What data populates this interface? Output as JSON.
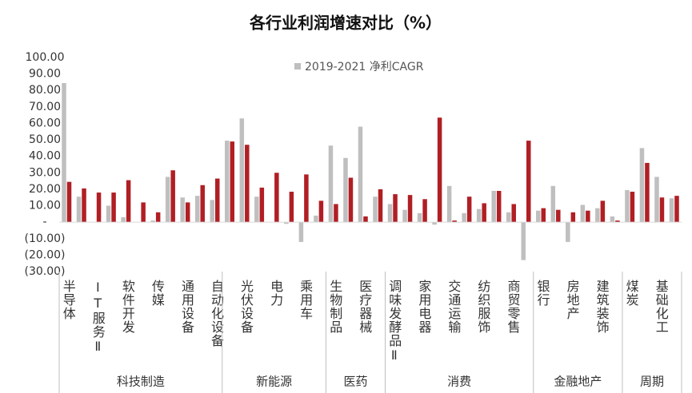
{
  "chart_data": {
    "type": "bar",
    "title": "各行业利润增速对比（%）",
    "categories": [
      "半导体",
      null,
      "IT服务Ⅱ",
      null,
      "软件开发",
      null,
      "传媒",
      null,
      "通用设备",
      null,
      "自动化设备",
      null,
      "光伏设备",
      null,
      "电力",
      null,
      "乘用车",
      null,
      "生物制品",
      null,
      "医疗器械",
      null,
      "调味发酵品Ⅱ",
      null,
      "家用电器",
      null,
      "交通运输",
      null,
      "纺织服饰",
      null,
      "商贸零售",
      null,
      "银行",
      null,
      "房地产",
      null,
      "建筑装饰",
      null,
      "煤炭",
      null,
      "基础化工",
      null
    ],
    "groups": [
      {
        "label": "科技制造",
        "span": 11
      },
      {
        "label": "新能源",
        "span": 7
      },
      {
        "label": "医药",
        "span": 4
      },
      {
        "label": "消费",
        "span": 10
      },
      {
        "label": "金融地产",
        "span": 6
      },
      {
        "label": "周期",
        "span": 4
      }
    ],
    "series": [
      {
        "name": "2019-2021 净利CAGR",
        "color": "#bfbfbf",
        "values": [
          84.5,
          15.5,
          0,
          10,
          3,
          0,
          1,
          27.5,
          15,
          16,
          13.5,
          49.5,
          63,
          15.5,
          0,
          -1,
          -12,
          4,
          46.5,
          39,
          58,
          15.5,
          11,
          7.5,
          5.5,
          -1.5,
          22,
          5.5,
          8,
          19,
          6,
          -23,
          7,
          22,
          -12,
          10.5,
          8.5,
          3.5,
          19.5,
          45,
          27.5,
          14.5
        ]
      },
      {
        "color": "#b01f24",
        "values": [
          24.5,
          20.5,
          18,
          18,
          25.5,
          12,
          6,
          31.5,
          12,
          22.5,
          26.5,
          49,
          47,
          21,
          30,
          18.5,
          29,
          13,
          11,
          27,
          3.5,
          20,
          17,
          16.5,
          14,
          63.5,
          1,
          15.5,
          11.5,
          19,
          11,
          49.5,
          8.5,
          7.5,
          6,
          7,
          13,
          1,
          18.5,
          36,
          15,
          16
        ]
      }
    ],
    "ylim": [
      -30,
      100
    ],
    "yticks": [
      {
        "value": -30,
        "label": "(30.00)"
      },
      {
        "value": -20,
        "label": "(20.00)"
      },
      {
        "value": -10,
        "label": "(10.00)"
      },
      {
        "value": 0,
        "label": "-"
      },
      {
        "value": 10,
        "label": "10.00"
      },
      {
        "value": 20,
        "label": "20.00"
      },
      {
        "value": 30,
        "label": "30.00"
      },
      {
        "value": 40,
        "label": "40.00"
      },
      {
        "value": 50,
        "label": "50.00"
      },
      {
        "value": 60,
        "label": "60.00"
      },
      {
        "value": 70,
        "label": "70.00"
      },
      {
        "value": 80,
        "label": "80.00"
      },
      {
        "value": 90,
        "label": "90.00"
      },
      {
        "value": 100,
        "label": "100.00"
      }
    ],
    "legend": "top"
  }
}
